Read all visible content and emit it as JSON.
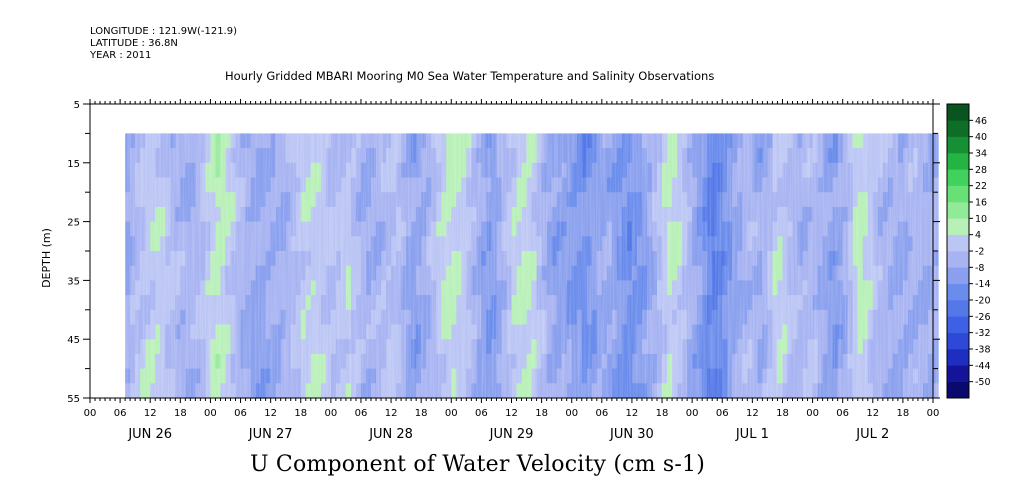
{
  "header": {
    "longitude": "LONGITUDE : 121.9W(-121.9)",
    "latitude": "LATITUDE : 36.8N",
    "year": "YEAR : 2011"
  },
  "chart_data": {
    "type": "heatmap",
    "title": "Hourly Gridded MBARI Mooring M0 Sea Water Temperature and Salinity Observations",
    "xlabel": "U Component of Water Velocity (cm s-1)",
    "ylabel": "DEPTH (m)",
    "ylim": [
      55,
      5
    ],
    "y_ticks": [
      5,
      15,
      25,
      35,
      45,
      55
    ],
    "data_depth_range": [
      10,
      55
    ],
    "x_hours_range": [
      0,
      168
    ],
    "data_start_hour": 7,
    "hour_tick_labels": [
      "00",
      "06",
      "12",
      "18"
    ],
    "final_tick_label": "00",
    "days": [
      "JUN 26",
      "JUN 27",
      "JUN 28",
      "JUN 29",
      "JUN 30",
      "JUL  1",
      "JUL  2"
    ],
    "colorbar": {
      "levels": [
        -50,
        -44,
        -38,
        -32,
        -26,
        -20,
        -14,
        -8,
        -2,
        4,
        10,
        16,
        22,
        28,
        34,
        40,
        46
      ],
      "tick_labels": [
        "46",
        "40",
        "34",
        "28",
        "22",
        "16",
        "10",
        "4",
        "-2",
        "-8",
        "-14",
        "-20",
        "-26",
        "-32",
        "-38",
        "-44",
        "-50"
      ],
      "colors_low_to_high": [
        "#0a0a6e",
        "#14149a",
        "#1e2ec0",
        "#2e48d8",
        "#3e60e4",
        "#5478e8",
        "#6a8cec",
        "#8aa0ee",
        "#a8b4f2",
        "#bcc6f4",
        "#b8f0b8",
        "#90ea98",
        "#68e078",
        "#40d25c",
        "#24b444",
        "#169034",
        "#0e6e26",
        "#0a5420"
      ]
    },
    "u_by_hour": [
      -9,
      -9,
      -9,
      -9,
      -9,
      -9,
      -9,
      -8,
      -5,
      -3,
      -1,
      1,
      2,
      2,
      1,
      -1,
      -3,
      -5,
      -6,
      -7,
      -6,
      -4,
      -2,
      1,
      4,
      6,
      5,
      2,
      -1,
      -4,
      -6,
      -8,
      -9,
      -10,
      -9,
      -8,
      -8,
      -7,
      -7,
      -5,
      -3,
      -1,
      1,
      2,
      3,
      2,
      1,
      -1,
      -2,
      -1,
      0,
      1,
      -1,
      -3,
      -6,
      -7,
      -6,
      -5,
      -4,
      -3,
      -2,
      -3,
      -6,
      -9,
      -11,
      -10,
      -8,
      -6,
      -3,
      1,
      3,
      5,
      5,
      3,
      1,
      -2,
      -5,
      -8,
      -11,
      -13,
      -12,
      -9,
      -5,
      -1,
      2,
      4,
      5,
      4,
      2,
      -2,
      -5,
      -8,
      -10,
      -11,
      -11,
      -12,
      -13,
      -14,
      -16,
      -14,
      -12,
      -10,
      -9,
      -9,
      -11,
      -13,
      -15,
      -17,
      -16,
      -14,
      -12,
      -9,
      -6,
      -2,
      2,
      4,
      3,
      1,
      -2,
      -5,
      -9,
      -12,
      -16,
      -20,
      -21,
      -19,
      -16,
      -13,
      -10,
      -8,
      -6,
      -5,
      -6,
      -8,
      -6,
      -3,
      1,
      3,
      1,
      -2,
      -4,
      -6,
      -5,
      -4,
      -5,
      -7,
      -9,
      -11,
      -12,
      -10,
      -7,
      -2,
      3,
      6,
      4,
      1,
      -3,
      -5,
      -6,
      -7,
      -8,
      -9,
      -8,
      -6,
      -5,
      -6,
      -7,
      -7,
      -7
    ]
  }
}
